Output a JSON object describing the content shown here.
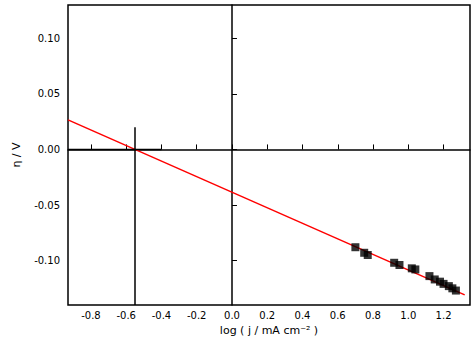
{
  "chart_data": {
    "type": "scatter",
    "x_label": "log ( j / mA cm⁻² )",
    "y_label": "η / V",
    "xlim": [
      -0.93,
      1.35
    ],
    "ylim": [
      -0.14,
      0.13
    ],
    "xticks": [
      -0.8,
      -0.6,
      -0.4,
      -0.2,
      {
        "value": 0,
        "label": "0.0"
      },
      0.2,
      0.4,
      0.6,
      0.8,
      {
        "value": 1,
        "label": "1.0"
      },
      1.2
    ],
    "yticks": [
      {
        "value": -0.1,
        "label": "-0.10"
      },
      -0.05,
      {
        "value": 0,
        "label": "0.00"
      },
      0.05,
      {
        "value": 0.1,
        "label": "0.10"
      }
    ],
    "grid": false,
    "series": [
      {
        "type": "scatter",
        "marker": "square",
        "color": "#000000",
        "x": [
          0.7,
          0.75,
          0.77,
          0.92,
          0.95,
          1.02,
          1.04,
          1.12,
          1.15,
          1.18,
          1.2,
          1.23,
          1.25,
          1.27
        ],
        "values": [
          -0.088,
          -0.093,
          -0.095,
          -0.102,
          -0.104,
          -0.107,
          -0.108,
          -0.114,
          -0.117,
          -0.119,
          -0.121,
          -0.123,
          -0.125,
          -0.127
        ]
      },
      {
        "type": "line",
        "line_style": "solid",
        "color": "#ff0000",
        "x": [
          -0.93,
          1.32
        ],
        "values": [
          0.0266,
          -0.1309
        ]
      },
      {
        "type": "line",
        "line_style": "solid",
        "color": "#000000",
        "x": [
          -0.55,
          -0.55
        ],
        "values": [
          -0.14,
          0.02
        ]
      },
      {
        "type": "line",
        "line_style": "solid",
        "color": "#000000",
        "x": [
          -0.93,
          -0.4
        ],
        "values": [
          0,
          0
        ]
      }
    ]
  }
}
